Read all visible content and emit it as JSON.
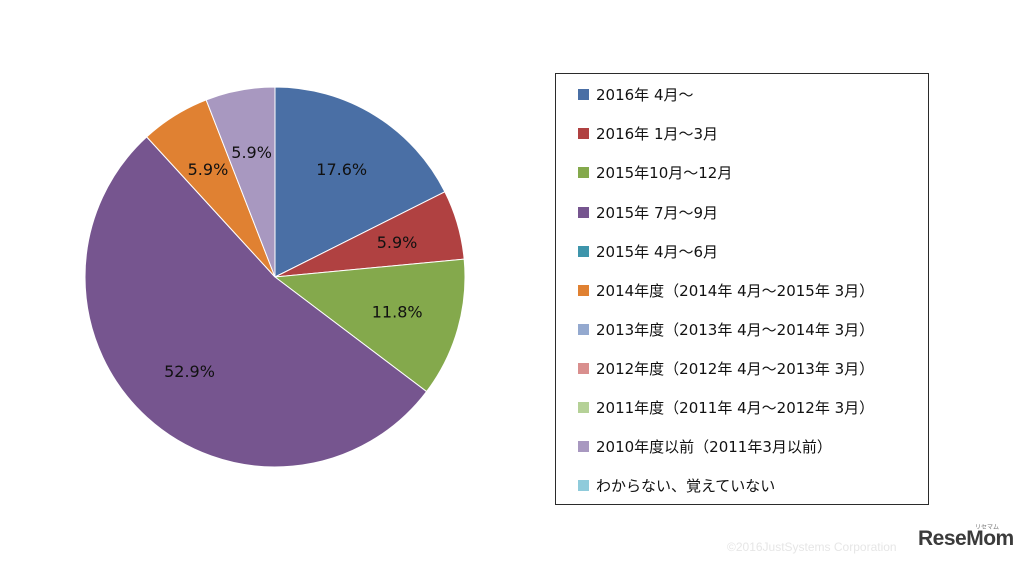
{
  "chart_data": {
    "type": "pie",
    "slices": [
      {
        "label": "2016年 4月～",
        "value": 17.6,
        "value_label": "17.6%",
        "color": "#4a6fa5"
      },
      {
        "label": "2016年 1月～3月",
        "value": 5.9,
        "value_label": "5.9%",
        "color": "#b04141"
      },
      {
        "label": "2015年10月～12月",
        "value": 11.8,
        "value_label": "11.8%",
        "color": "#84a94c"
      },
      {
        "label": "2015年 7月～9月",
        "value": 52.9,
        "value_label": "52.9%",
        "color": "#76558f"
      },
      {
        "label": "2015年 4月～6月",
        "value": 0,
        "value_label": "",
        "color": "#3e95ab"
      },
      {
        "label": "2014年度（2014年 4月～2015年 3月）",
        "value": 5.9,
        "value_label": "5.9%",
        "color": "#e08132"
      },
      {
        "label": "2013年度（2013年 4月～2014年 3月）",
        "value": 0,
        "value_label": "",
        "color": "#94a9cf"
      },
      {
        "label": "2012年度（2012年 4月～2013年 3月）",
        "value": 0,
        "value_label": "",
        "color": "#d98f8e"
      },
      {
        "label": "2011年度（2011年 4月～2012年 3月）",
        "value": 0,
        "value_label": "",
        "color": "#b5d197"
      },
      {
        "label": "2010年度以前（2011年3月以前）",
        "value": 5.9,
        "value_label": "5.9%",
        "color": "#a898c0"
      },
      {
        "label": "わからない、覚えていない",
        "value": 0,
        "value_label": "",
        "color": "#8fcbdb"
      }
    ],
    "legend_position": "right"
  },
  "footer": {
    "copyright": "©2016JustSystems Corporation",
    "logo": "ReseMom",
    "logo_kana": "リセマム"
  }
}
